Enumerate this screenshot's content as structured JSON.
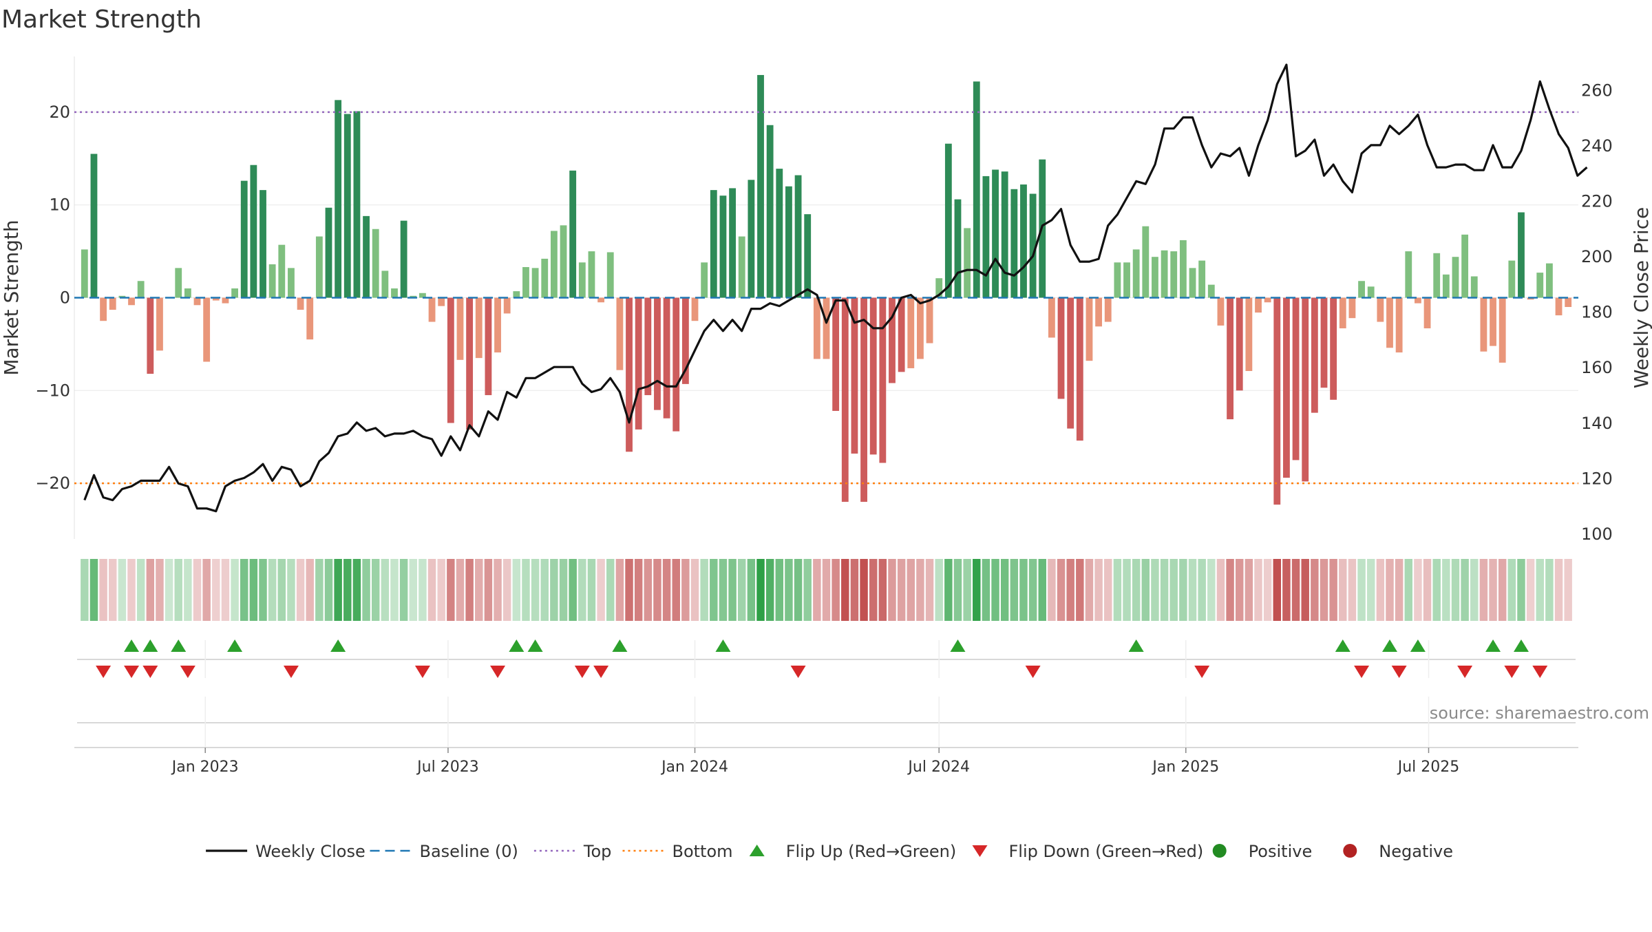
{
  "chart_data": {
    "type": "bar",
    "title": "Market Strength",
    "source": "source: sharemaestro.com",
    "ylabel": "Market Strength",
    "y2label": "Weekly Close Price",
    "ylim": [
      -26,
      26
    ],
    "y2lim": [
      98,
      272
    ],
    "yticks": [
      20,
      10,
      0,
      -10,
      -20
    ],
    "ytick_labels": [
      "20",
      "10",
      "0",
      "−10",
      "−20"
    ],
    "y2ticks": [
      260,
      240,
      220,
      200,
      180,
      160,
      140,
      120,
      100
    ],
    "y2tick_labels": [
      "260",
      "240",
      "220",
      "200",
      "180",
      "160",
      "140",
      "120",
      "100"
    ],
    "top_threshold": 20,
    "bottom_threshold": -20,
    "baseline": 0,
    "x_start": "2022-10-03",
    "x_end": "2025-10-20",
    "week_step_days": 7,
    "xtick_dates": [
      "2023-01-01",
      "2023-07-01",
      "2024-01-01",
      "2024-07-01",
      "2025-01-01",
      "2025-07-01"
    ],
    "xtick_labels": [
      "Jan 2023",
      "Jul 2023",
      "Jan 2024",
      "Jul 2024",
      "Jan 2025",
      "Jul 2025"
    ],
    "strength": [
      5.2,
      15.5,
      -2.5,
      -1.3,
      0.2,
      -0.8,
      1.8,
      -8.2,
      -5.7,
      0,
      3.2,
      1.0,
      -0.8,
      -6.9,
      -0.3,
      -0.6,
      1.0,
      12.6,
      14.3,
      11.6,
      3.6,
      5.7,
      3.2,
      -1.3,
      -4.5,
      6.6,
      9.7,
      21.3,
      19.8,
      20.1,
      8.8,
      7.4,
      2.9,
      1.0,
      8.3,
      0.2,
      0.5,
      -2.6,
      -0.9,
      -13.5,
      -6.7,
      -14.2,
      -6.5,
      -10.5,
      -5.9,
      -1.7,
      0.7,
      3.3,
      3.2,
      4.2,
      7.2,
      7.8,
      13.7,
      3.8,
      5.0,
      -0.5,
      4.9,
      -7.8,
      -16.6,
      -14.2,
      -10.5,
      -12.1,
      -13.0,
      -14.4,
      -9.3,
      -2.5,
      3.8,
      11.6,
      11.0,
      11.8,
      6.6,
      12.7,
      24.0,
      18.6,
      13.9,
      12.0,
      13.2,
      9.0,
      -6.6,
      -6.6,
      -12.2,
      -22.0,
      -16.8,
      -22.0,
      -16.9,
      -17.8,
      -9.2,
      -8.0,
      -7.6,
      -6.6,
      -4.9,
      2.1,
      16.6,
      10.6,
      7.5,
      23.3,
      13.1,
      13.8,
      13.6,
      11.7,
      12.2,
      11.2,
      14.9,
      -4.3,
      -10.9,
      -14.1,
      -15.4,
      -6.8,
      -3.1,
      -2.6,
      3.8,
      3.8,
      5.2,
      7.7,
      4.4,
      5.1,
      5.0,
      6.2,
      3.2,
      4.0,
      1.4,
      -3.0,
      -13.1,
      -10.0,
      -7.9,
      -1.6,
      -0.5,
      -22.3,
      -19.4,
      -17.5,
      -19.8,
      -12.4,
      -9.7,
      -11.0,
      -3.3,
      -2.2,
      1.8,
      1.2,
      -2.6,
      -5.4,
      -5.9,
      5.0,
      -0.6,
      -3.3,
      4.8,
      2.5,
      4.4,
      6.8,
      2.3,
      -5.8,
      -5.2,
      -7.0,
      4.0,
      9.2,
      -0.2,
      2.7,
      3.7,
      -1.9,
      -1.0
    ],
    "weekly_close": [
      112,
      121,
      113,
      112,
      116,
      117,
      119,
      119,
      119,
      124,
      118,
      117,
      109,
      109,
      108,
      117,
      119,
      120,
      122,
      125,
      119,
      124,
      123,
      117,
      119,
      126,
      129,
      135,
      136,
      140,
      137,
      138,
      135,
      136,
      136,
      137,
      135,
      134,
      128,
      135,
      130,
      139,
      135,
      144,
      141,
      151,
      149,
      156,
      156,
      158,
      160,
      160,
      160,
      154,
      151,
      152,
      156,
      151,
      140,
      152,
      153,
      155,
      153,
      153,
      159,
      166,
      173,
      177,
      173,
      177,
      173,
      181,
      181,
      183,
      182,
      184,
      186,
      188,
      186,
      176,
      184,
      184,
      176,
      177,
      174,
      174,
      178,
      185,
      186,
      183,
      184,
      186,
      189,
      194,
      195,
      195,
      193,
      199,
      194,
      193,
      196,
      200,
      211,
      213,
      217,
      204,
      198,
      198,
      199,
      211,
      215,
      221,
      227,
      226,
      233,
      246,
      246,
      250,
      250,
      240,
      232,
      237,
      236,
      239,
      229,
      240,
      249,
      262,
      269,
      236,
      238,
      242,
      229,
      233,
      227,
      223,
      237,
      240,
      240,
      247,
      244,
      247,
      251,
      240,
      232,
      232,
      233,
      233,
      231,
      231,
      240,
      232,
      232,
      238,
      249,
      263,
      253,
      244,
      239,
      229,
      232
    ],
    "flip_up_weeks": [
      5,
      7,
      10,
      16,
      27,
      46,
      48,
      57,
      68,
      93,
      112,
      134,
      139,
      142,
      150,
      153
    ],
    "flip_down_weeks": [
      2,
      5,
      7,
      11,
      22,
      36,
      44,
      53,
      55,
      76,
      101,
      119,
      136,
      140,
      147,
      152,
      155
    ],
    "colors": {
      "strong_positive": "#2e8b57",
      "weak_positive": "#7fbf7f",
      "strong_negative": "#cd5c5c",
      "weak_negative": "#e9967a",
      "line": "#111111",
      "baseline": "#1f77b4",
      "top": "#9467bd",
      "bottom": "#ff7f0e",
      "flip_up": "#2ca02c",
      "flip_down": "#d62728",
      "positive_marker": "#228b22",
      "negative_marker": "#b22222",
      "axis_text": "#333333",
      "grid": "#e8e8e8"
    },
    "legend": [
      {
        "label": "Weekly Close",
        "kind": "line"
      },
      {
        "label": "Baseline (0)",
        "kind": "baseline"
      },
      {
        "label": "Top",
        "kind": "top"
      },
      {
        "label": "Bottom",
        "kind": "bottom"
      },
      {
        "label": "Flip Up (Red→Green)",
        "kind": "flip_up"
      },
      {
        "label": "Flip Down (Green→Red)",
        "kind": "flip_down"
      },
      {
        "label": "Positive",
        "kind": "positive"
      },
      {
        "label": "Negative",
        "kind": "negative"
      }
    ]
  }
}
